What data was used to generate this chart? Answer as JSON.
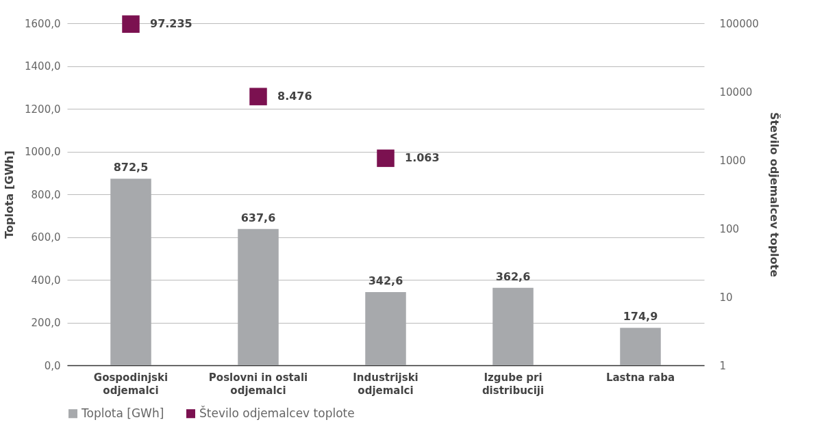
{
  "chart_data": {
    "type": "bar",
    "categories": [
      "Gospodinjski odjemalci",
      "Poslovni in ostali odjemalci",
      "Industrijski odjemalci",
      "Izgube pri distribuciji",
      "Lastna raba"
    ],
    "series": [
      {
        "name": "Toplota [GWh]",
        "color": "#a7a9ac",
        "values": [
          872.5,
          637.6,
          342.6,
          362.6,
          174.9
        ],
        "value_labels": [
          "872,5",
          "637,6",
          "342,6",
          "362,6",
          "174,9"
        ]
      },
      {
        "name": "Število odjemalcev toplote",
        "type": "scatter",
        "axis": "y2",
        "color": "#7b1150",
        "values": [
          97235,
          8476,
          1063,
          null,
          null
        ],
        "value_labels": [
          "97.235",
          "8.476",
          "1.063",
          null,
          null
        ]
      }
    ],
    "ylabel": "Toplota [GWh]",
    "y2label": "Število odjemalcev toplote",
    "ylim": [
      0,
      1600
    ],
    "yticks": [
      {
        "value": 0,
        "label": "0,0"
      },
      {
        "value": 200,
        "label": "200,0"
      },
      {
        "value": 400,
        "label": "400,0"
      },
      {
        "value": 600,
        "label": "600,0"
      },
      {
        "value": 800,
        "label": "800,0"
      },
      {
        "value": 1000,
        "label": "1000,0"
      },
      {
        "value": 1200,
        "label": "1200,0"
      },
      {
        "value": 1400,
        "label": "1400,0"
      },
      {
        "value": 1600,
        "label": "1600,0"
      }
    ],
    "y2lim": [
      1,
      100000
    ],
    "y2ticks": [
      1,
      10,
      100,
      1000,
      10000,
      100000
    ],
    "log": "y2",
    "grid": "y",
    "legend": "bottom",
    "marker": "square"
  }
}
